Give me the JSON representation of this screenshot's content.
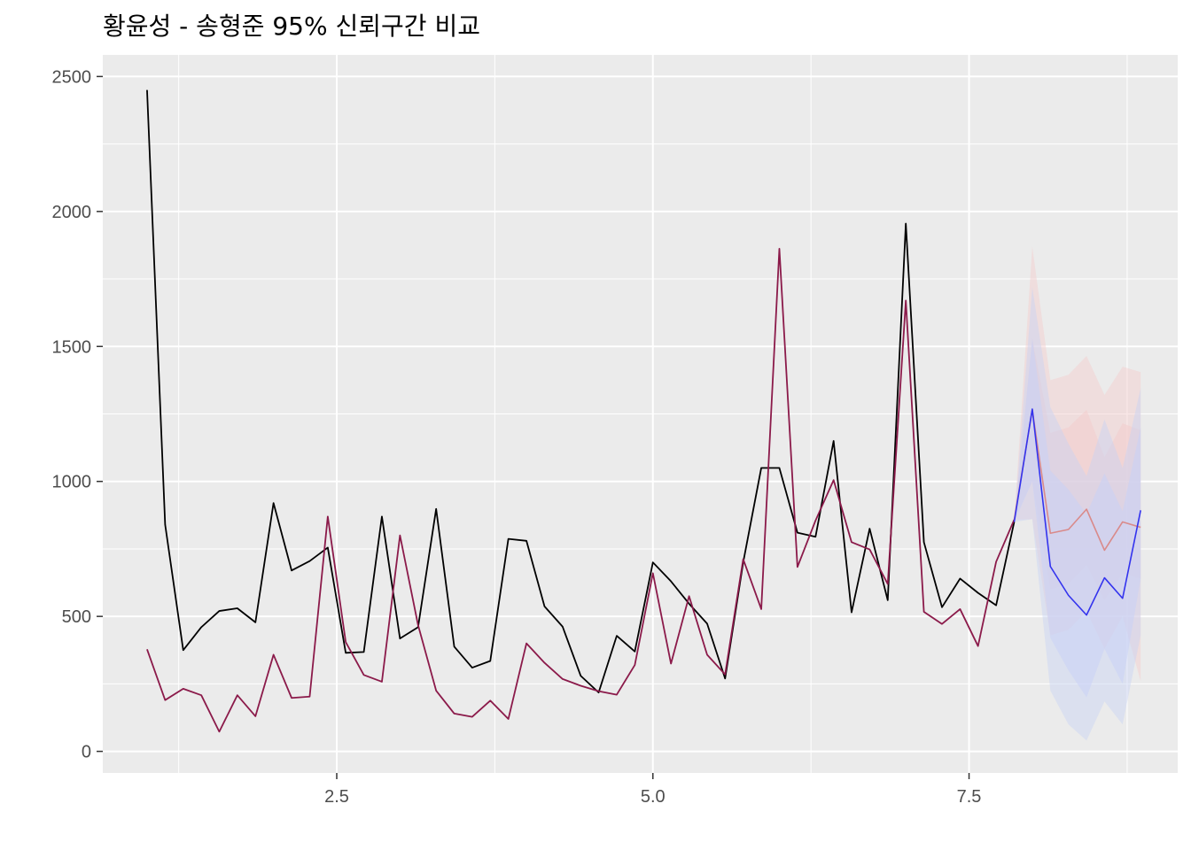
{
  "chart_data": {
    "type": "line",
    "title": "황윤성 - 송형준 95% 신뢰구간 비교",
    "xlabel": "",
    "ylabel": "",
    "xlim": [
      0.65,
      9.15
    ],
    "ylim": [
      -80,
      2580
    ],
    "x_ticks": [
      2.5,
      5.0,
      7.5
    ],
    "x_tick_labels": [
      "2.5",
      "5.0",
      "7.5"
    ],
    "y_ticks": [
      0,
      500,
      1000,
      1500,
      2000,
      2500
    ],
    "y_tick_labels": [
      "0",
      "500",
      "1000",
      "1500",
      "2000",
      "2500"
    ],
    "grid": true,
    "colors": {
      "panel": "#ebebeb",
      "grid": "#ffffff",
      "series_a": "#000000",
      "series_b": "#8b1a4a",
      "forecast_a": "#3333ee",
      "forecast_b": "#d98a8a",
      "band_a": "#c8d2f5",
      "band_b": "#f3cccc"
    },
    "series": [
      {
        "key": "a",
        "x": [
          1,
          1.143,
          1.286,
          1.429,
          1.571,
          1.714,
          1.857,
          2,
          2.143,
          2.286,
          2.429,
          2.571,
          2.714,
          2.857,
          3,
          3.143,
          3.286,
          3.429,
          3.571,
          3.714,
          3.857,
          4,
          4.143,
          4.286,
          4.429,
          4.571,
          4.714,
          4.857,
          5,
          5.143,
          5.286,
          5.429,
          5.571,
          5.714,
          5.857,
          6,
          6.143,
          6.286,
          6.429,
          6.571,
          6.714,
          6.857,
          7,
          7.143,
          7.286,
          7.429,
          7.571,
          7.714,
          7.857
        ],
        "values": [
          2450,
          840,
          375,
          460,
          520,
          530,
          478,
          920,
          670,
          705,
          755,
          365,
          368,
          870,
          418,
          460,
          898,
          388,
          310,
          335,
          787,
          780,
          537,
          462,
          280,
          218,
          428,
          370,
          700,
          630,
          547,
          473,
          270,
          700,
          1050,
          1050,
          810,
          795,
          1150,
          515,
          825,
          560,
          1955,
          775,
          534,
          640,
          587,
          541,
          850
        ]
      },
      {
        "key": "b",
        "x": [
          1,
          1.143,
          1.286,
          1.429,
          1.571,
          1.714,
          1.857,
          2,
          2.143,
          2.286,
          2.429,
          2.571,
          2.714,
          2.857,
          3,
          3.143,
          3.286,
          3.429,
          3.571,
          3.714,
          3.857,
          4,
          4.143,
          4.286,
          4.429,
          4.571,
          4.714,
          4.857,
          5,
          5.143,
          5.286,
          5.429,
          5.571,
          5.714,
          5.857,
          6,
          6.143,
          6.286,
          6.429,
          6.571,
          6.714,
          6.857,
          7,
          7.143,
          7.286,
          7.429,
          7.571,
          7.714,
          7.857
        ],
        "values": [
          378,
          190,
          232,
          208,
          73,
          208,
          130,
          358,
          198,
          203,
          870,
          405,
          283,
          258,
          800,
          468,
          225,
          140,
          128,
          188,
          120,
          400,
          328,
          268,
          243,
          223,
          210,
          320,
          660,
          325,
          575,
          358,
          285,
          712,
          527,
          1862,
          683,
          855,
          1005,
          775,
          748,
          620,
          1670,
          517,
          472,
          527,
          390,
          702,
          858
        ]
      }
    ],
    "forecasts": [
      {
        "key": "b",
        "x": [
          7.857,
          8,
          8.143,
          8.286,
          8.429,
          8.571,
          8.714,
          8.857
        ],
        "values": [
          858,
          1265,
          808,
          822,
          897,
          745,
          850,
          830
        ],
        "lower80": [
          858,
          1000,
          600,
          620,
          690,
          560,
          660,
          640
        ],
        "upper80": [
          858,
          1530,
          1180,
          1200,
          1265,
          1090,
          1215,
          1190
        ],
        "lower95": [
          858,
          860,
          430,
          450,
          520,
          380,
          500,
          260
        ],
        "upper95": [
          858,
          1870,
          1375,
          1395,
          1465,
          1320,
          1425,
          1405
        ]
      },
      {
        "key": "a",
        "x": [
          7.857,
          8,
          8.143,
          8.286,
          8.429,
          8.571,
          8.714,
          8.857
        ],
        "values": [
          850,
          1268,
          685,
          578,
          505,
          643,
          567,
          893
        ],
        "lower80": [
          850,
          1000,
          420,
          300,
          200,
          380,
          250,
          640
        ],
        "upper80": [
          850,
          1530,
          1040,
          970,
          880,
          1030,
          890,
          1200
        ],
        "lower95": [
          850,
          860,
          225,
          100,
          40,
          185,
          100,
          430
        ],
        "upper95": [
          850,
          1720,
          1275,
          1140,
          1020,
          1230,
          1050,
          1345
        ]
      }
    ]
  }
}
